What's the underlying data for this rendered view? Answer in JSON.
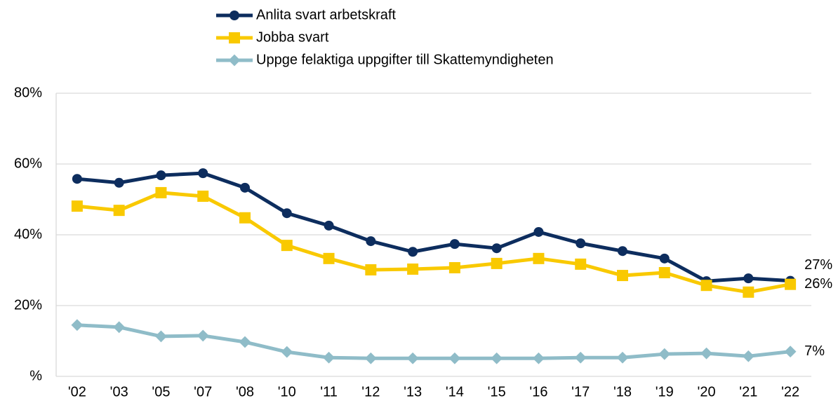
{
  "chart_data": {
    "type": "line",
    "categories": [
      "'02",
      "'03",
      "'05",
      "'07",
      "'08",
      "'10",
      "'11",
      "'12",
      "'13",
      "'14",
      "'15",
      "'16",
      "'17",
      "'18",
      "'19",
      "'20",
      "'21",
      "'22"
    ],
    "series": [
      {
        "name": "Anlita svart arbetskraft",
        "color": "#0d2d5e",
        "marker": "circle",
        "values": [
          55.8,
          54.7,
          56.8,
          57.4,
          53.3,
          46.1,
          42.6,
          38.2,
          35.2,
          37.4,
          36.2,
          40.8,
          37.6,
          35.4,
          33.3,
          26.9,
          27.7,
          27
        ],
        "value_labels": [
          null,
          null,
          null,
          null,
          null,
          null,
          null,
          null,
          null,
          null,
          null,
          null,
          null,
          null,
          null,
          null,
          null,
          "27%"
        ]
      },
      {
        "name": "Jobba svart",
        "color": "#f9c900",
        "marker": "square",
        "values": [
          48.1,
          46.9,
          51.9,
          50.9,
          44.8,
          37.0,
          33.3,
          30.1,
          30.3,
          30.7,
          31.9,
          33.3,
          31.7,
          28.5,
          29.3,
          25.7,
          23.8,
          26
        ],
        "value_labels": [
          null,
          null,
          null,
          null,
          null,
          null,
          null,
          null,
          null,
          null,
          null,
          null,
          null,
          null,
          null,
          null,
          null,
          "26%"
        ]
      },
      {
        "name": "Uppge felaktiga uppgifter till Skattemyndigheten",
        "color": "#8fbcc8",
        "marker": "diamond",
        "values": [
          14.5,
          13.9,
          11.3,
          11.5,
          9.7,
          6.9,
          5.3,
          5.1,
          5.1,
          5.1,
          5.1,
          5.1,
          5.3,
          5.3,
          6.3,
          6.5,
          5.7,
          7
        ],
        "value_labels": [
          null,
          null,
          null,
          null,
          null,
          null,
          null,
          null,
          null,
          null,
          null,
          null,
          null,
          null,
          null,
          null,
          null,
          "7%"
        ]
      }
    ],
    "ylim": [
      0,
      80
    ],
    "yticks": [
      {
        "value": 0,
        "label": "%"
      },
      {
        "value": 20,
        "label": "20%"
      },
      {
        "value": 40,
        "label": "40%"
      },
      {
        "value": 60,
        "label": "60%"
      },
      {
        "value": 80,
        "label": "80%"
      }
    ],
    "grid": true,
    "legend": "top"
  }
}
